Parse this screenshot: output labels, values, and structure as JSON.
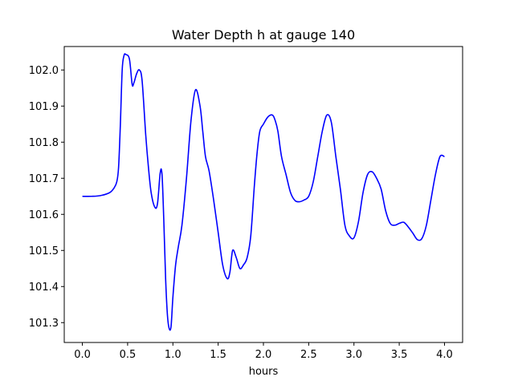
{
  "chart_data": {
    "type": "line",
    "title": "Water Depth h at gauge 140",
    "xlabel": "hours",
    "ylabel": "",
    "xlim": [
      -0.2,
      4.2
    ],
    "ylim": [
      101.245,
      102.065
    ],
    "x_ticks": [
      0.0,
      0.5,
      1.0,
      1.5,
      2.0,
      2.5,
      3.0,
      3.5,
      4.0
    ],
    "x_tick_labels": [
      "0.0",
      "0.5",
      "1.0",
      "1.5",
      "2.0",
      "2.5",
      "3.0",
      "3.5",
      "4.0"
    ],
    "y_ticks": [
      101.3,
      101.4,
      101.5,
      101.6,
      101.7,
      101.8,
      101.9,
      102.0
    ],
    "y_tick_labels": [
      "101.3",
      "101.4",
      "101.5",
      "101.6",
      "101.7",
      "101.8",
      "101.9",
      "102.0"
    ],
    "grid": false,
    "series": [
      {
        "color": "#0000ff",
        "x": [
          0.0,
          0.1,
          0.2,
          0.3,
          0.35,
          0.38,
          0.4,
          0.42,
          0.44,
          0.46,
          0.48,
          0.52,
          0.55,
          0.57,
          0.6,
          0.63,
          0.66,
          0.7,
          0.73,
          0.76,
          0.8,
          0.83,
          0.86,
          0.88,
          0.9,
          0.92,
          0.94,
          0.96,
          0.98,
          1.0,
          1.03,
          1.06,
          1.1,
          1.15,
          1.2,
          1.25,
          1.3,
          1.33,
          1.36,
          1.4,
          1.45,
          1.5,
          1.55,
          1.6,
          1.63,
          1.66,
          1.7,
          1.74,
          1.78,
          1.82,
          1.86,
          1.9,
          1.93,
          1.96,
          2.0,
          2.05,
          2.1,
          2.13,
          2.16,
          2.2,
          2.25,
          2.3,
          2.35,
          2.4,
          2.45,
          2.5,
          2.55,
          2.6,
          2.65,
          2.7,
          2.75,
          2.8,
          2.85,
          2.9,
          2.95,
          3.0,
          3.05,
          3.1,
          3.15,
          3.2,
          3.25,
          3.3,
          3.35,
          3.4,
          3.45,
          3.5,
          3.55,
          3.6,
          3.65,
          3.7,
          3.75,
          3.8,
          3.85,
          3.9,
          3.95,
          4.0
        ],
        "y": [
          101.65,
          101.65,
          101.652,
          101.66,
          101.673,
          101.69,
          101.73,
          101.85,
          102.0,
          102.04,
          102.043,
          102.03,
          101.96,
          101.965,
          101.99,
          102.0,
          101.97,
          101.82,
          101.73,
          101.66,
          101.62,
          101.63,
          101.715,
          101.71,
          101.58,
          101.42,
          101.32,
          101.283,
          101.29,
          101.37,
          101.46,
          101.51,
          101.57,
          101.7,
          101.86,
          101.945,
          101.9,
          101.83,
          101.76,
          101.72,
          101.64,
          101.55,
          101.46,
          101.422,
          101.44,
          101.5,
          101.48,
          101.45,
          101.46,
          101.48,
          101.54,
          101.68,
          101.77,
          101.83,
          101.85,
          101.87,
          101.875,
          101.86,
          101.83,
          101.76,
          101.71,
          101.66,
          101.638,
          101.635,
          101.64,
          101.65,
          101.69,
          101.76,
          101.83,
          101.875,
          101.855,
          101.76,
          101.67,
          101.57,
          101.54,
          101.535,
          101.58,
          101.66,
          101.71,
          101.718,
          101.7,
          101.67,
          101.61,
          101.575,
          101.57,
          101.575,
          101.578,
          101.565,
          101.548,
          101.53,
          101.533,
          101.57,
          101.64,
          101.71,
          101.76,
          101.76
        ]
      }
    ]
  }
}
